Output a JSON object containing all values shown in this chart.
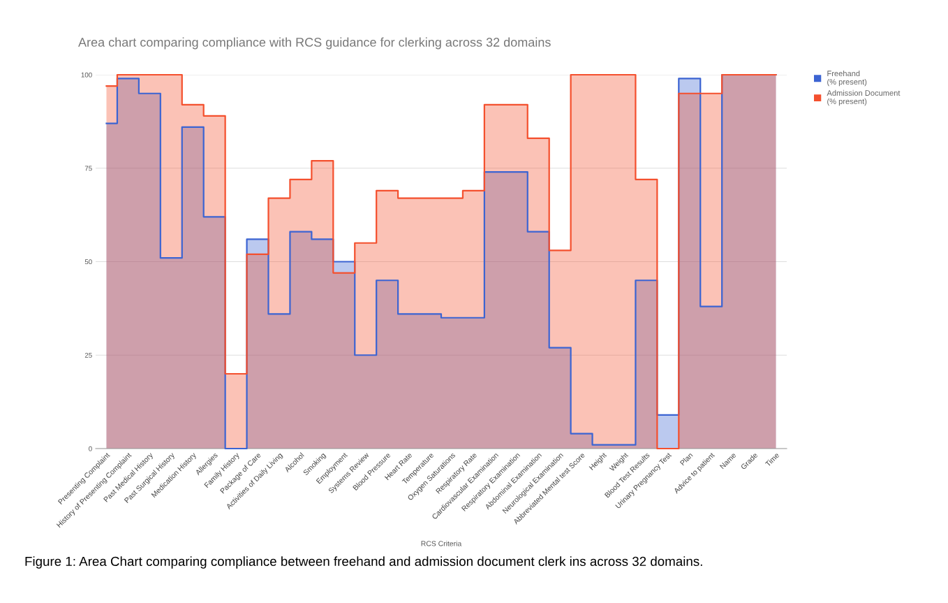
{
  "chart_data": {
    "type": "step",
    "title": "Area chart comparing compliance with RCS guidance for clerking across 32 domains",
    "xlabel": "RCS Criteria",
    "categories": [
      "Presenting Complaint",
      "History of Presenting Complaint",
      "Past Medical History",
      "Past Surgical History",
      "Medication History",
      "Allergies",
      "Family History",
      "Package of Care",
      "Activities of Daily Living",
      "Alcohol",
      "Smoking",
      "Employment",
      "Systems Review",
      "Blood Pressure",
      "Heart Rate",
      "Temperature",
      "Oxygen Saturations",
      "Respiratory Rate",
      "Cardiovascular Examination",
      "Respiratory Examination",
      "Abdominal Examination",
      "Neurological Examination",
      "Abbreviated Mental test Score",
      "Height",
      "Weight",
      "Blood Test Results",
      "Urinary Pregnancy Test",
      "Plan",
      "Advice to patient",
      "Name",
      "Grade",
      "Time"
    ],
    "series": [
      {
        "name": "Freehand\n(% present)",
        "color": "#3c64d2",
        "values": [
          87,
          99,
          95,
          51,
          86,
          62,
          0,
          56,
          36,
          58,
          56,
          50,
          25,
          45,
          36,
          36,
          35,
          35,
          74,
          74,
          58,
          27,
          4,
          1,
          1,
          45,
          9,
          99,
          38,
          100,
          100,
          100
        ]
      },
      {
        "name": "Admission Document\n(% present)",
        "color": "#f4502e",
        "values": [
          97,
          100,
          100,
          100,
          92,
          89,
          20,
          52,
          67,
          72,
          77,
          47,
          55,
          69,
          67,
          67,
          67,
          69,
          92,
          92,
          83,
          53,
          100,
          100,
          100,
          72,
          0,
          95,
          95,
          100,
          100,
          100
        ]
      }
    ],
    "ylim": [
      0,
      100
    ],
    "yticks": [
      0,
      25,
      50,
      75,
      100
    ],
    "grid": "y",
    "legend": "top right",
    "annotations": [
      "Figure 1: Area Chart comparing compliance between freehand and admission document clerk ins across 32 domains."
    ]
  }
}
